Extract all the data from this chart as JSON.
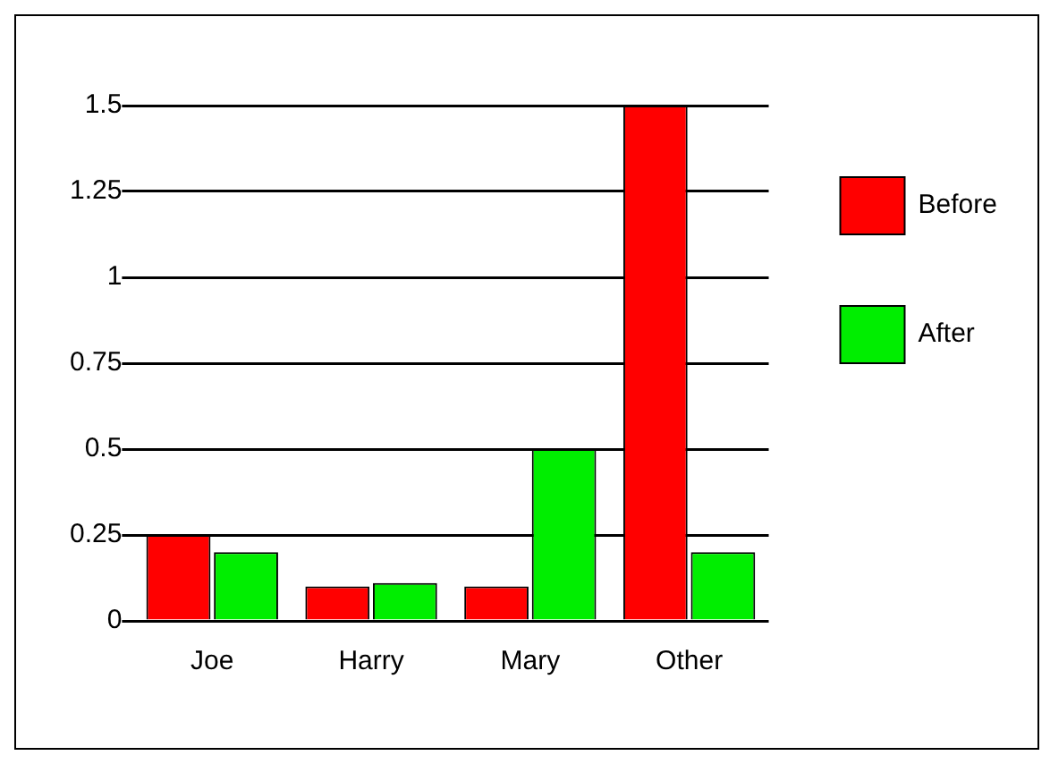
{
  "chart_data": {
    "type": "bar",
    "categories": [
      "Joe",
      "Harry",
      "Mary",
      "Other"
    ],
    "series": [
      {
        "name": "Before",
        "color": "#ff0000",
        "values": [
          0.25,
          0.1,
          0.1,
          1.5
        ]
      },
      {
        "name": "After",
        "color": "#00ee00",
        "values": [
          0.2,
          0.11,
          0.5,
          0.2
        ]
      }
    ],
    "ylim": [
      0,
      1.5
    ],
    "yticks": [
      0,
      0.25,
      0.5,
      0.75,
      1,
      1.25,
      1.5
    ],
    "grid": "y",
    "legend": "top right"
  }
}
